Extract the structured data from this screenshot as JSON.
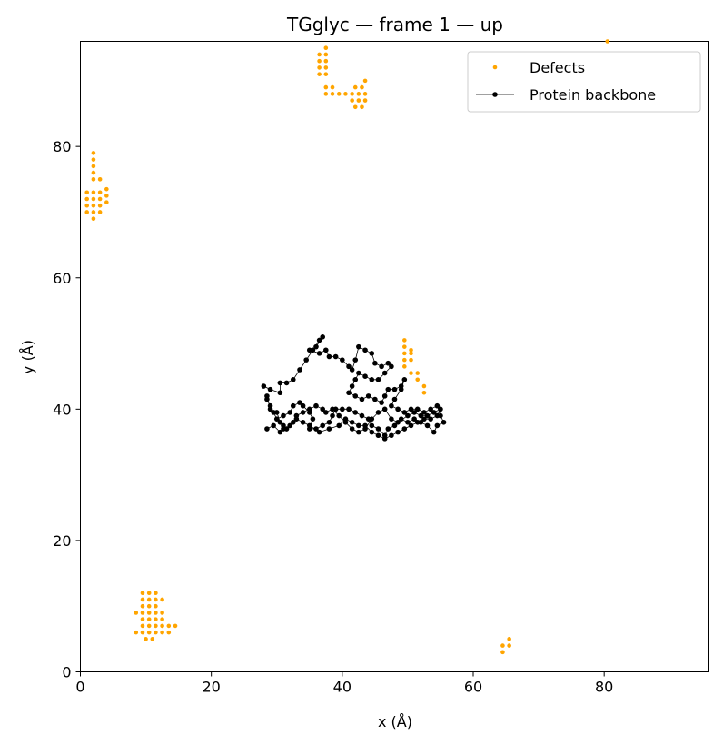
{
  "chart_data": {
    "type": "scatter",
    "title": "TGglyc — frame 1 — up",
    "xlabel": "x (Å)",
    "ylabel": "y (Å)",
    "xlim": [
      0,
      96
    ],
    "ylim": [
      0,
      96
    ],
    "xticks": [
      0,
      20,
      40,
      60,
      80
    ],
    "yticks": [
      0,
      20,
      40,
      60,
      80
    ],
    "grid": false,
    "legend": {
      "placement": "top-right",
      "entries": [
        "Defects",
        "Protein backbone"
      ]
    },
    "colors": {
      "defects": "#ffa500",
      "backbone": "#000000"
    },
    "series": [
      {
        "name": "Defects",
        "style": "scatter",
        "points": [
          [
            2.0,
            79.0
          ],
          [
            2.0,
            78.0
          ],
          [
            2.0,
            77.0
          ],
          [
            2.0,
            76.0
          ],
          [
            2.0,
            75.0
          ],
          [
            3.0,
            75.0
          ],
          [
            1.0,
            73.0
          ],
          [
            2.0,
            73.0
          ],
          [
            3.0,
            73.0
          ],
          [
            4.0,
            73.5
          ],
          [
            4.0,
            72.5
          ],
          [
            1.0,
            72.0
          ],
          [
            2.0,
            72.0
          ],
          [
            3.0,
            72.0
          ],
          [
            4.0,
            71.5
          ],
          [
            1.0,
            71.0
          ],
          [
            2.0,
            71.0
          ],
          [
            3.0,
            71.0
          ],
          [
            1.0,
            70.0
          ],
          [
            2.0,
            70.0
          ],
          [
            3.0,
            70.0
          ],
          [
            2.0,
            69.0
          ],
          [
            36.5,
            94.0
          ],
          [
            37.5,
            95.0
          ],
          [
            36.5,
            93.0
          ],
          [
            37.5,
            94.0
          ],
          [
            36.5,
            92.0
          ],
          [
            37.5,
            93.0
          ],
          [
            36.5,
            91.0
          ],
          [
            37.5,
            92.0
          ],
          [
            37.5,
            91.0
          ],
          [
            37.5,
            89.0
          ],
          [
            38.5,
            89.0
          ],
          [
            37.5,
            88.0
          ],
          [
            38.5,
            88.0
          ],
          [
            39.5,
            88.0
          ],
          [
            40.5,
            88.0
          ],
          [
            42.0,
            89.0
          ],
          [
            43.0,
            89.0
          ],
          [
            43.5,
            90.0
          ],
          [
            41.5,
            88.0
          ],
          [
            42.5,
            88.0
          ],
          [
            43.5,
            88.0
          ],
          [
            41.5,
            87.0
          ],
          [
            42.5,
            87.0
          ],
          [
            43.5,
            87.0
          ],
          [
            42.0,
            86.0
          ],
          [
            43.0,
            86.0
          ],
          [
            49.5,
            50.5
          ],
          [
            49.5,
            49.5
          ],
          [
            50.5,
            49.0
          ],
          [
            49.5,
            48.5
          ],
          [
            50.5,
            48.5
          ],
          [
            49.5,
            47.5
          ],
          [
            50.5,
            47.5
          ],
          [
            49.5,
            46.5
          ],
          [
            50.5,
            45.5
          ],
          [
            51.5,
            45.5
          ],
          [
            51.5,
            44.5
          ],
          [
            52.5,
            43.5
          ],
          [
            52.5,
            42.5
          ],
          [
            9.5,
            12.0
          ],
          [
            10.5,
            12.0
          ],
          [
            11.5,
            12.0
          ],
          [
            9.5,
            11.0
          ],
          [
            10.5,
            11.0
          ],
          [
            11.5,
            11.0
          ],
          [
            12.5,
            11.0
          ],
          [
            9.5,
            10.0
          ],
          [
            10.5,
            10.0
          ],
          [
            11.5,
            10.0
          ],
          [
            8.5,
            9.0
          ],
          [
            9.5,
            9.0
          ],
          [
            10.5,
            9.0
          ],
          [
            11.5,
            9.0
          ],
          [
            12.5,
            9.0
          ],
          [
            9.5,
            8.0
          ],
          [
            10.5,
            8.0
          ],
          [
            11.5,
            8.0
          ],
          [
            12.5,
            8.0
          ],
          [
            9.5,
            7.0
          ],
          [
            10.5,
            7.0
          ],
          [
            11.5,
            7.0
          ],
          [
            12.5,
            7.0
          ],
          [
            13.5,
            7.0
          ],
          [
            14.5,
            7.0
          ],
          [
            8.5,
            6.0
          ],
          [
            9.5,
            6.0
          ],
          [
            10.5,
            6.0
          ],
          [
            11.5,
            6.0
          ],
          [
            12.5,
            6.0
          ],
          [
            13.5,
            6.0
          ],
          [
            10.0,
            5.0
          ],
          [
            11.0,
            5.0
          ],
          [
            64.5,
            3.0
          ],
          [
            64.5,
            4.0
          ],
          [
            65.5,
            4.0
          ],
          [
            65.5,
            5.0
          ],
          [
            80.5,
            96.0
          ]
        ]
      },
      {
        "name": "Protein backbone",
        "style": "line-markers",
        "points": [
          [
            28.0,
            43.5
          ],
          [
            29.0,
            43.0
          ],
          [
            30.5,
            42.5
          ],
          [
            30.5,
            44.0
          ],
          [
            31.5,
            44.0
          ],
          [
            32.5,
            44.5
          ],
          [
            33.5,
            46.0
          ],
          [
            34.5,
            47.5
          ],
          [
            35.5,
            49.0
          ],
          [
            36.5,
            50.5
          ],
          [
            37.0,
            51.0
          ],
          [
            36.0,
            49.5
          ],
          [
            35.0,
            49.0
          ],
          [
            36.5,
            48.5
          ],
          [
            37.5,
            49.0
          ],
          [
            38.0,
            48.0
          ],
          [
            39.0,
            48.0
          ],
          [
            40.0,
            47.5
          ],
          [
            41.0,
            46.5
          ],
          [
            41.5,
            46.0
          ],
          [
            42.0,
            47.5
          ],
          [
            42.5,
            49.5
          ],
          [
            43.5,
            49.0
          ],
          [
            44.5,
            48.5
          ],
          [
            45.0,
            47.0
          ],
          [
            46.0,
            46.5
          ],
          [
            47.0,
            47.0
          ],
          [
            47.5,
            46.5
          ],
          [
            46.5,
            45.5
          ],
          [
            45.5,
            44.5
          ],
          [
            44.5,
            44.5
          ],
          [
            43.5,
            45.0
          ],
          [
            42.5,
            45.5
          ],
          [
            42.0,
            44.5
          ],
          [
            41.5,
            43.5
          ],
          [
            41.0,
            42.5
          ],
          [
            42.0,
            42.0
          ],
          [
            43.0,
            41.5
          ],
          [
            44.0,
            42.0
          ],
          [
            45.0,
            41.5
          ],
          [
            46.0,
            41.0
          ],
          [
            46.5,
            42.0
          ],
          [
            47.0,
            43.0
          ],
          [
            48.0,
            43.0
          ],
          [
            49.0,
            43.5
          ],
          [
            49.5,
            44.5
          ],
          [
            49.0,
            43.0
          ],
          [
            48.0,
            41.5
          ],
          [
            47.5,
            40.5
          ],
          [
            48.5,
            40.0
          ],
          [
            49.5,
            39.5
          ],
          [
            50.5,
            40.0
          ],
          [
            51.5,
            40.0
          ],
          [
            52.5,
            39.5
          ],
          [
            53.5,
            40.0
          ],
          [
            54.5,
            40.5
          ],
          [
            55.0,
            39.0
          ],
          [
            55.5,
            38.0
          ],
          [
            54.5,
            37.5
          ],
          [
            54.0,
            36.5
          ],
          [
            53.0,
            37.5
          ],
          [
            52.0,
            38.0
          ],
          [
            51.0,
            38.5
          ],
          [
            50.0,
            38.0
          ],
          [
            49.0,
            38.5
          ],
          [
            48.0,
            37.5
          ],
          [
            47.0,
            37.0
          ],
          [
            46.5,
            36.0
          ],
          [
            45.5,
            37.0
          ],
          [
            44.5,
            37.5
          ],
          [
            44.0,
            38.5
          ],
          [
            43.0,
            39.0
          ],
          [
            42.0,
            39.5
          ],
          [
            41.0,
            40.0
          ],
          [
            40.0,
            40.0
          ],
          [
            39.0,
            40.0
          ],
          [
            38.5,
            39.0
          ],
          [
            38.0,
            38.0
          ],
          [
            37.0,
            37.5
          ],
          [
            36.0,
            37.0
          ],
          [
            35.0,
            37.0
          ],
          [
            35.5,
            38.5
          ],
          [
            35.0,
            39.5
          ],
          [
            34.0,
            40.5
          ],
          [
            33.5,
            41.0
          ],
          [
            32.5,
            40.5
          ],
          [
            32.0,
            39.5
          ],
          [
            31.0,
            39.0
          ],
          [
            30.0,
            38.5
          ],
          [
            29.5,
            39.5
          ],
          [
            29.0,
            40.5
          ],
          [
            28.5,
            41.5
          ],
          [
            28.5,
            42.0
          ],
          [
            29.0,
            40.0
          ],
          [
            30.0,
            39.5
          ],
          [
            30.5,
            38.0
          ],
          [
            31.0,
            37.5
          ],
          [
            31.5,
            37.0
          ],
          [
            32.5,
            38.0
          ],
          [
            33.0,
            39.0
          ],
          [
            34.0,
            39.5
          ],
          [
            35.0,
            40.0
          ],
          [
            36.0,
            40.5
          ],
          [
            37.0,
            40.0
          ],
          [
            37.5,
            39.5
          ],
          [
            38.5,
            40.0
          ],
          [
            39.5,
            39.0
          ],
          [
            40.5,
            38.0
          ],
          [
            41.5,
            37.0
          ],
          [
            42.5,
            36.5
          ],
          [
            43.5,
            37.0
          ],
          [
            44.5,
            38.5
          ],
          [
            45.5,
            39.5
          ],
          [
            46.5,
            40.0
          ],
          [
            47.5,
            38.5
          ],
          [
            48.5,
            38.0
          ],
          [
            50.0,
            39.0
          ],
          [
            51.0,
            39.5
          ],
          [
            52.0,
            39.0
          ],
          [
            53.0,
            39.0
          ],
          [
            54.0,
            39.5
          ],
          [
            55.0,
            40.0
          ],
          [
            54.5,
            39.0
          ],
          [
            53.5,
            38.5
          ],
          [
            52.5,
            38.5
          ],
          [
            51.5,
            38.0
          ],
          [
            50.5,
            37.5
          ],
          [
            49.5,
            37.0
          ],
          [
            48.5,
            36.5
          ],
          [
            47.5,
            36.0
          ],
          [
            46.5,
            35.5
          ],
          [
            45.5,
            36.0
          ],
          [
            44.5,
            36.5
          ],
          [
            43.5,
            37.5
          ],
          [
            42.5,
            37.5
          ],
          [
            41.5,
            38.0
          ],
          [
            40.5,
            38.5
          ],
          [
            39.5,
            37.5
          ],
          [
            38.0,
            37.0
          ],
          [
            36.5,
            36.5
          ],
          [
            35.0,
            37.5
          ],
          [
            34.0,
            38.0
          ],
          [
            33.0,
            38.5
          ],
          [
            32.0,
            37.5
          ],
          [
            31.0,
            37.0
          ],
          [
            30.5,
            36.5
          ],
          [
            29.5,
            37.5
          ],
          [
            28.5,
            37.0
          ]
        ]
      }
    ]
  }
}
